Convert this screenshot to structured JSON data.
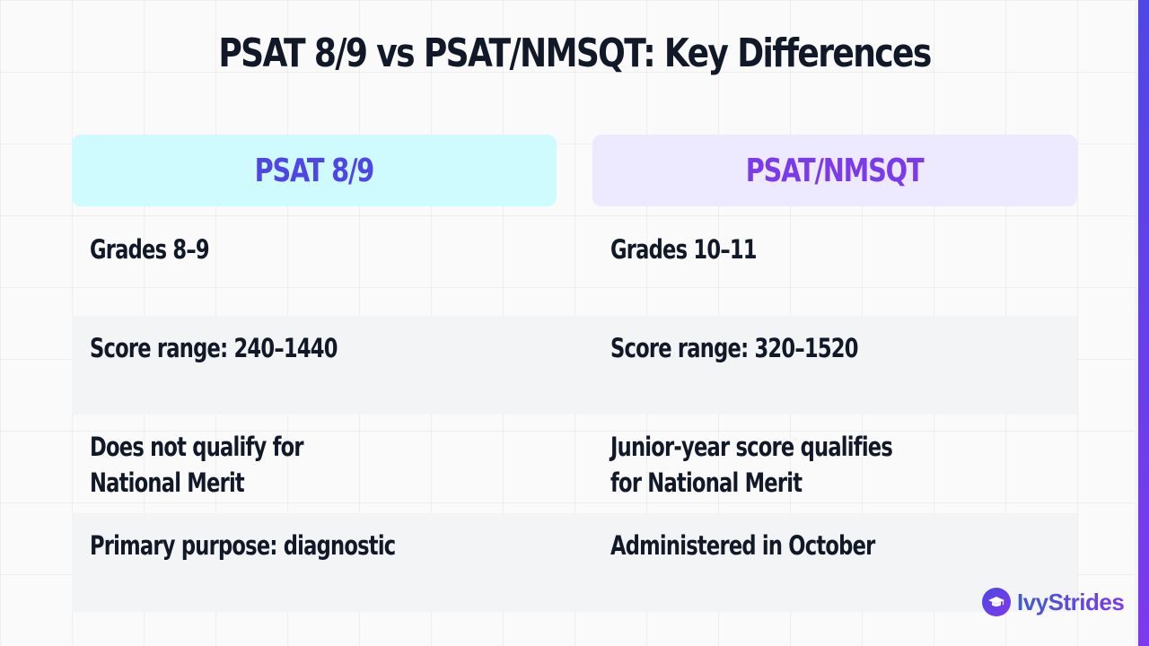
{
  "title": "PSAT 8/9 vs PSAT/NMSQT: Key Differences",
  "columns": {
    "left": "PSAT 8/9",
    "right": "PSAT/NMSQT"
  },
  "rows": [
    {
      "left": "Grades 8–9",
      "right": "Grades 10–11"
    },
    {
      "left": "Score range: 240–1440",
      "right": "Score range: 320–1520"
    },
    {
      "left": "Does not qualify for\nNational Merit",
      "right": "Junior-year score qualifies\nfor National Merit"
    },
    {
      "left": "Primary purpose: diagnostic",
      "right": "Administered in October"
    }
  ],
  "brand": {
    "name": "IvyStrides",
    "icon": "graduation-cap-icon"
  },
  "colors": {
    "left_header_bg": "#cffafe",
    "left_header_text": "#4f46e5",
    "right_header_bg": "#ede9fe",
    "right_header_text": "#7c3aed",
    "accent": "#7c3aed"
  }
}
